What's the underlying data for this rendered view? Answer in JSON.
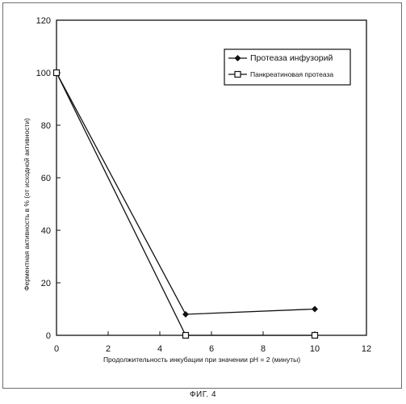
{
  "chart_data": {
    "type": "line",
    "ylabel": "Ферментная активность в % (от исходной активности)",
    "xlabel": "Продолжительность инкубации при значении  pH = 2 (минуты)",
    "xlim": [
      0,
      12
    ],
    "ylim": [
      0,
      120
    ],
    "x_ticks": [
      0,
      2,
      4,
      6,
      8,
      10,
      12
    ],
    "y_ticks": [
      0,
      20,
      40,
      60,
      80,
      100,
      120
    ],
    "grid": false,
    "legend_position": "top-right",
    "series": [
      {
        "name": "Протеаза инфузорий",
        "marker": "diamond-filled",
        "x": [
          0,
          5,
          10
        ],
        "y": [
          100,
          8,
          10
        ]
      },
      {
        "name": "Панкреатиновая протеаза",
        "marker": "square-open",
        "x": [
          0,
          5,
          10
        ],
        "y": [
          100,
          0,
          0
        ]
      }
    ]
  },
  "caption": "ФИГ. 4"
}
